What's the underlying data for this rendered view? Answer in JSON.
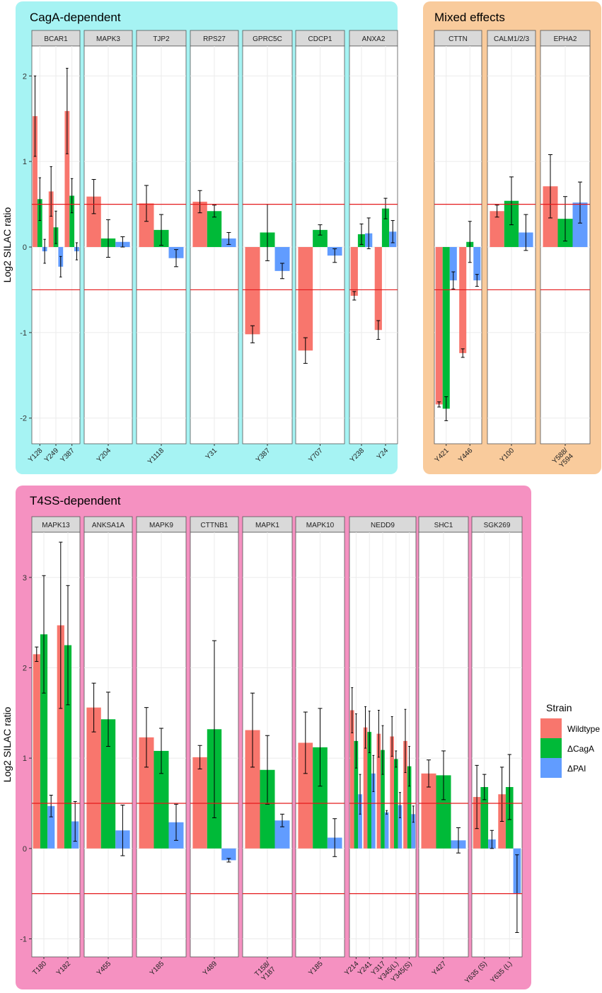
{
  "colors": {
    "wildtype": "#F8766D",
    "dcaga": "#00BA38",
    "dpai": "#619CFF",
    "threshold": "#E41A1C",
    "cagaBox": "#A6F3F3",
    "mixedBox": "#F9CB9C",
    "t4ssBox": "#F591C1",
    "strip": "#D9D9D9"
  },
  "legend": {
    "title": "Strain",
    "items": [
      {
        "label": "Wildtype",
        "color": "#F8766D"
      },
      {
        "label": "ΔCagA",
        "color": "#00BA38"
      },
      {
        "label": "ΔPAI",
        "color": "#619CFF"
      }
    ]
  },
  "chart_data": [
    {
      "type": "bar",
      "title": "CagA-dependent",
      "ylabel": "Log2 SILAC ratio",
      "ylim": [
        -2.3,
        2.35
      ],
      "yticks": [
        2,
        1,
        0,
        -1,
        -2
      ],
      "thresholds": [
        0.5,
        -0.5
      ],
      "series_names": [
        "Wildtype",
        "ΔCagA",
        "ΔPAI"
      ],
      "facets": [
        {
          "name": "BCAR1",
          "sites": [
            {
              "site": "Y128",
              "values": [
                1.53,
                0.56,
                -0.05
              ],
              "errors": [
                0.47,
                0.25,
                0.14
              ]
            },
            {
              "site": "Y249",
              "values": [
                0.65,
                0.23,
                -0.23
              ],
              "errors": [
                0.29,
                0.19,
                0.12
              ]
            },
            {
              "site": "Y387",
              "values": [
                1.59,
                0.6,
                -0.05
              ],
              "errors": [
                0.5,
                0.2,
                0.1
              ]
            }
          ]
        },
        {
          "name": "MAPK3",
          "sites": [
            {
              "site": "Y204",
              "values": [
                0.59,
                0.1,
                0.06
              ],
              "errors": [
                0.2,
                0.22,
                0.06
              ]
            }
          ]
        },
        {
          "name": "TJP2",
          "sites": [
            {
              "site": "Y1118",
              "values": [
                0.51,
                0.2,
                -0.13
              ],
              "errors": [
                0.21,
                0.18,
                0.1
              ]
            }
          ]
        },
        {
          "name": "RPS27",
          "sites": [
            {
              "site": "Y31",
              "values": [
                0.53,
                0.42,
                0.1
              ],
              "errors": [
                0.13,
                0.07,
                0.07
              ]
            }
          ]
        },
        {
          "name": "GPRC5C",
          "sites": [
            {
              "site": "Y387",
              "values": [
                -1.02,
                0.17,
                -0.28
              ],
              "errors": [
                0.1,
                0.33,
                0.09
              ]
            }
          ]
        },
        {
          "name": "CDCP1",
          "sites": [
            {
              "site": "Y707",
              "values": [
                -1.21,
                0.2,
                -0.1
              ],
              "errors": [
                0.15,
                0.06,
                0.08
              ]
            }
          ]
        },
        {
          "name": "ANXA2",
          "sites": [
            {
              "site": "Y238",
              "values": [
                -0.57,
                0.15,
                0.16
              ],
              "errors": [
                0.05,
                0.12,
                0.18
              ]
            },
            {
              "site": "Y24",
              "values": [
                -0.97,
                0.45,
                0.18
              ],
              "errors": [
                0.11,
                0.12,
                0.13
              ]
            }
          ]
        }
      ]
    },
    {
      "type": "bar",
      "title": "Mixed effects",
      "ylabel": "",
      "ylim": [
        -2.3,
        2.35
      ],
      "yticks": [
        2,
        1,
        0,
        -1,
        -2
      ],
      "thresholds": [
        0.5,
        -0.5
      ],
      "series_names": [
        "Wildtype",
        "ΔCagA",
        "ΔPAI"
      ],
      "facets": [
        {
          "name": "CTTN",
          "sites": [
            {
              "site": "Y421",
              "values": [
                -1.84,
                -1.89,
                -0.39
              ],
              "errors": [
                0.03,
                0.14,
                0.1
              ]
            },
            {
              "site": "Y446",
              "values": [
                -1.24,
                0.06,
                -0.39
              ],
              "errors": [
                0.05,
                0.24,
                0.07
              ]
            }
          ]
        },
        {
          "name": "CALM1/2/3",
          "sites": [
            {
              "site": "Y100",
              "values": [
                0.42,
                0.54,
                0.17
              ],
              "errors": [
                0.07,
                0.28,
                0.21
              ]
            }
          ]
        },
        {
          "name": "EPHA2",
          "sites": [
            {
              "site": "Y588/\nY594",
              "values": [
                0.71,
                0.33,
                0.52
              ],
              "errors": [
                0.37,
                0.26,
                0.24
              ]
            }
          ]
        }
      ]
    },
    {
      "type": "bar",
      "title": "T4SS-dependent",
      "ylabel": "Log2 SILAC ratio",
      "ylim": [
        -1.2,
        3.5
      ],
      "yticks": [
        3,
        2,
        1,
        0,
        -1
      ],
      "thresholds": [
        0.5,
        -0.5
      ],
      "series_names": [
        "Wildtype",
        "ΔCagA",
        "ΔPAI"
      ],
      "facets": [
        {
          "name": "MAPK13",
          "sites": [
            {
              "site": "T180",
              "values": [
                2.15,
                2.37,
                0.47
              ],
              "errors": [
                0.08,
                0.65,
                0.12
              ]
            },
            {
              "site": "Y182",
              "values": [
                2.47,
                2.25,
                0.3
              ],
              "errors": [
                0.92,
                0.66,
                0.22
              ]
            }
          ]
        },
        {
          "name": "ANKSA1A",
          "sites": [
            {
              "site": "Y455",
              "values": [
                1.56,
                1.43,
                0.2
              ],
              "errors": [
                0.27,
                0.3,
                0.28
              ]
            }
          ]
        },
        {
          "name": "MAPK9",
          "sites": [
            {
              "site": "Y185",
              "values": [
                1.23,
                1.08,
                0.29
              ],
              "errors": [
                0.33,
                0.25,
                0.2
              ]
            }
          ]
        },
        {
          "name": "CTTNB1",
          "sites": [
            {
              "site": "Y489",
              "values": [
                1.01,
                1.32,
                -0.13
              ],
              "errors": [
                0.13,
                0.98,
                0.02
              ]
            }
          ]
        },
        {
          "name": "MAPK1",
          "sites": [
            {
              "site": "T158/\nY187",
              "values": [
                1.31,
                0.87,
                0.31
              ],
              "errors": [
                0.41,
                0.38,
                0.07
              ]
            }
          ]
        },
        {
          "name": "MAPK10",
          "sites": [
            {
              "site": "Y185",
              "values": [
                1.17,
                1.12,
                0.12
              ],
              "errors": [
                0.34,
                0.43,
                0.21
              ]
            }
          ]
        },
        {
          "name": "NEDD9",
          "sites": [
            {
              "site": "Y214",
              "values": [
                1.53,
                1.19,
                0.6
              ],
              "errors": [
                0.25,
                0.3,
                0.22
              ]
            },
            {
              "site": "Y241",
              "values": [
                1.34,
                1.29,
                0.83
              ],
              "errors": [
                0.23,
                0.23,
                0.2
              ]
            },
            {
              "site": "Y317",
              "values": [
                1.27,
                1.09,
                0.4
              ],
              "errors": [
                0.26,
                0.27,
                0.02
              ]
            },
            {
              "site": "Y345(L)",
              "values": [
                1.24,
                0.99,
                0.48
              ],
              "errors": [
                0.22,
                0.09,
                0.14
              ]
            },
            {
              "site": "Y345(S)",
              "values": [
                1.19,
                0.91,
                0.38
              ],
              "errors": [
                0.35,
                0.22,
                0.09
              ]
            }
          ]
        },
        {
          "name": "SHC1",
          "sites": [
            {
              "site": "Y427",
              "values": [
                0.83,
                0.81,
                0.09
              ],
              "errors": [
                0.15,
                0.27,
                0.14
              ]
            }
          ]
        },
        {
          "name": "SGK269",
          "sites": [
            {
              "site": "Y635 (S)",
              "values": [
                0.57,
                0.68,
                0.1
              ],
              "errors": [
                0.35,
                0.14,
                0.1
              ]
            },
            {
              "site": "Y635 (L)",
              "values": [
                0.6,
                0.68,
                -0.5
              ],
              "errors": [
                0.3,
                0.36,
                0.43
              ]
            }
          ]
        }
      ]
    }
  ]
}
